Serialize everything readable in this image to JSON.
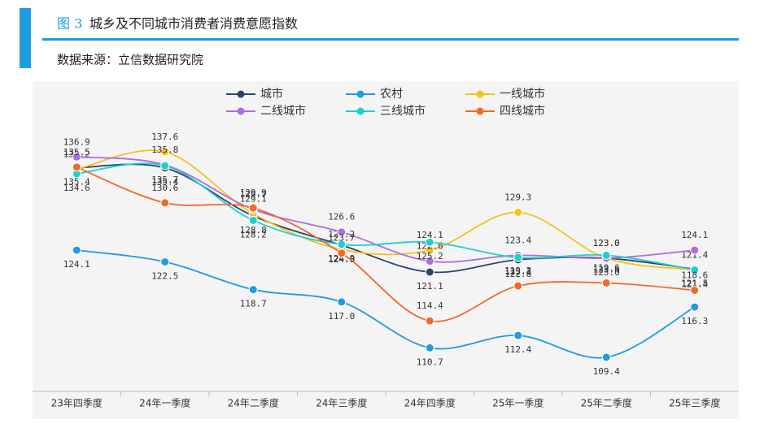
{
  "chart_data": {
    "type": "line",
    "figure_label": "图 3",
    "title": "城乡及不同城市消费者消费意愿指数",
    "subtitle": "数据来源：立信数据研究院",
    "categories": [
      "23年四季度",
      "24年一季度",
      "24年二季度",
      "24年三季度",
      "24年四季度",
      "25年一季度",
      "25年二季度",
      "25年三季度"
    ],
    "smooth": true,
    "series": [
      {
        "name": "城市",
        "color": "#2b4468",
        "values": [
          135.4,
          135.4,
          128.8,
          124.8,
          121.1,
          122.8,
          123.0,
          121.5
        ],
        "value_labels": [
          "135.4",
          "135.4",
          "128.8",
          "124.8",
          "121.1",
          "122.8",
          "123.0",
          "121.5"
        ]
      },
      {
        "name": "农村",
        "color": "#1f9be0",
        "values": [
          124.1,
          122.5,
          118.7,
          117.0,
          110.7,
          112.4,
          109.4,
          116.3
        ],
        "value_labels": [
          "124.1",
          "122.5",
          "118.7",
          "117.0",
          "110.7",
          "112.4",
          "109.4",
          "116.3"
        ]
      },
      {
        "name": "一线城市",
        "color": "#f5c21b",
        "values": [
          135.2,
          137.6,
          129.1,
          124.2,
          124.1,
          129.3,
          123.0,
          121.4
        ],
        "value_labels": [
          "135.2",
          "137.6",
          "129.1",
          "124.2",
          "124.1",
          "129.3",
          "123.0",
          "121.4"
        ]
      },
      {
        "name": "二线城市",
        "color": "#b06be0",
        "values": [
          136.9,
          135.8,
          129.7,
          126.6,
          122.6,
          123.4,
          123.0,
          124.1
        ],
        "value_labels": [
          "136.9",
          "135.8",
          "129.7",
          "126.6",
          "122.6",
          "123.4",
          "123.0",
          "124.1"
        ]
      },
      {
        "name": "三线城市",
        "color": "#1fcfcf",
        "values": [
          134.6,
          135.7,
          128.2,
          124.9,
          125.2,
          123.1,
          123.4,
          121.4
        ]
      },
      {
        "name": "四线城市",
        "color": "#f06a2a",
        "values": [
          135.5,
          130.6,
          129.9,
          123.7,
          114.4,
          119.2,
          119.6,
          118.6
        ]
      }
    ]
  }
}
